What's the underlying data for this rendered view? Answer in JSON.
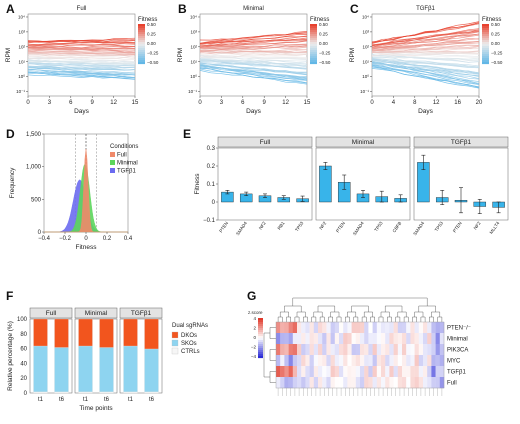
{
  "figure": {
    "panel_letters": [
      "A",
      "B",
      "C",
      "D",
      "E",
      "F",
      "G"
    ]
  },
  "chart_data": [
    {
      "panel": "A",
      "type": "line",
      "title": "Full",
      "xlabel": "Days",
      "ylabel": "RPM",
      "xlim": [
        0,
        15
      ],
      "ylim_log10": [
        -1.3,
        4.2
      ],
      "x_ticks": [
        "0",
        "3",
        "6",
        "9",
        "12",
        "15"
      ],
      "y_ticks": [
        "10⁻¹",
        "10⁰",
        "10¹",
        "10²",
        "10³",
        "10⁴"
      ],
      "legend_title": "Fitness",
      "legend_ticks": [
        "0.50",
        "0.25",
        "0.00",
        "−0.25",
        "−0.50"
      ],
      "fitness_range": [
        -0.5,
        0.5
      ],
      "band_log10_at_start": [
        0.2,
        2.4
      ],
      "band_log10_at_end": [
        -0.2,
        2.5
      ],
      "n_lines": 60
    },
    {
      "panel": "B",
      "type": "line",
      "title": "Minimal",
      "xlabel": "Days",
      "ylabel": "RPM",
      "xlim": [
        0,
        15
      ],
      "ylim_log10": [
        -1.3,
        4.2
      ],
      "x_ticks": [
        "0",
        "3",
        "6",
        "9",
        "12",
        "15"
      ],
      "y_ticks": [
        "10⁻¹",
        "10⁰",
        "10¹",
        "10²",
        "10³",
        "10⁴"
      ],
      "legend_title": "Fitness",
      "legend_ticks": [
        "0.50",
        "0.25",
        "0.00",
        "−0.25",
        "−0.50"
      ],
      "fitness_range": [
        -0.5,
        0.5
      ],
      "band_log10_at_start": [
        0.5,
        2.3
      ],
      "band_log10_at_end": [
        -0.5,
        3.0
      ],
      "n_lines": 60
    },
    {
      "panel": "C",
      "type": "line",
      "title": "TGFβ1",
      "xlabel": "Days",
      "ylabel": "RPM",
      "xlim": [
        0,
        20
      ],
      "ylim_log10": [
        -1.3,
        4.2
      ],
      "x_ticks": [
        "0",
        "4",
        "8",
        "12",
        "16",
        "20"
      ],
      "y_ticks": [
        "10⁻¹",
        "10⁰",
        "10¹",
        "10²",
        "10³",
        "10⁴"
      ],
      "legend_title": "Fitness",
      "legend_ticks": [
        "0.50",
        "0.25",
        "0.00",
        "−0.25",
        "−0.50"
      ],
      "fitness_range": [
        -0.5,
        0.5
      ],
      "band_log10_at_start": [
        0.7,
        2.3
      ],
      "band_log10_at_end": [
        -0.9,
        3.6
      ],
      "n_lines": 60
    },
    {
      "panel": "D",
      "type": "area",
      "xlabel": "Fitness",
      "ylabel": "Frequency",
      "xlim": [
        -0.4,
        0.4
      ],
      "ylim": [
        0,
        1500
      ],
      "x_ticks": [
        "−0.4",
        "−0.2",
        "0",
        "0.2",
        "0.4"
      ],
      "y_ticks": [
        "0",
        "500",
        "1,000",
        "1,500"
      ],
      "legend_title": "Conditions",
      "series": [
        {
          "name": "Full",
          "color": "#f08a6a",
          "mean": 0.0,
          "sd": 0.02,
          "peak": 1270
        },
        {
          "name": "Minimal",
          "color": "#5cd65c",
          "mean": -0.01,
          "sd": 0.045,
          "peak": 1040
        },
        {
          "name": "TGFβ1",
          "color": "#6b6bf0",
          "mean": -0.06,
          "sd": 0.06,
          "peak": 800
        }
      ]
    },
    {
      "panel": "E",
      "type": "bar",
      "ylabel": "Fitness",
      "ylim": [
        -0.1,
        0.3
      ],
      "y_ticks": [
        "−0.1",
        "0",
        "0.1",
        "0.2",
        "0.3"
      ],
      "facets": [
        {
          "name": "Full",
          "categories": [
            "PTEN",
            "SMAD4",
            "NF2",
            "RB1",
            "TP53"
          ],
          "values": [
            0.055,
            0.045,
            0.035,
            0.025,
            0.018
          ],
          "errors": [
            0.01,
            0.01,
            0.01,
            0.01,
            0.015
          ]
        },
        {
          "name": "Minimal",
          "categories": [
            "NF2",
            "PTEN",
            "SMAD4",
            "TP53",
            "CBFB"
          ],
          "values": [
            0.2,
            0.11,
            0.045,
            0.03,
            0.02
          ],
          "errors": [
            0.02,
            0.04,
            0.02,
            0.03,
            0.02
          ]
        },
        {
          "name": "TGFβ1",
          "categories": [
            "SMAD4",
            "TP53",
            "PTEN",
            "NF2",
            "MLLT4"
          ],
          "values": [
            0.22,
            0.025,
            0.01,
            -0.025,
            -0.03
          ],
          "errors": [
            0.04,
            0.04,
            0.07,
            0.04,
            0.03
          ]
        }
      ]
    },
    {
      "panel": "F",
      "type": "bar",
      "xlabel": "Time points",
      "ylabel": "Relative percentage (%)",
      "ylim": [
        0,
        100
      ],
      "y_ticks": [
        "0",
        "20",
        "40",
        "60",
        "80",
        "100"
      ],
      "legend_title": "Dual sgRNAs",
      "stack_order": [
        "CTRLs",
        "SKOs",
        "DKOs"
      ],
      "stack_colors": {
        "DKOs": "#f2551e",
        "SKOs": "#8ed4f0",
        "CTRLs": "#f6f6f6"
      },
      "legend_entries": [
        {
          "name": "DKOs",
          "color": "#f2551e"
        },
        {
          "name": "SKOs",
          "color": "#8ed4f0"
        },
        {
          "name": "CTRLs",
          "color": "#f6f6f6"
        }
      ],
      "facets": [
        {
          "name": "Full",
          "categories": [
            "t1",
            "t6"
          ],
          "CTRLs": [
            1.5,
            1.5
          ],
          "SKOs": [
            62,
            60
          ],
          "DKOs": [
            36.5,
            38.5
          ]
        },
        {
          "name": "Minimal",
          "categories": [
            "t1",
            "t6"
          ],
          "CTRLs": [
            1.5,
            1.5
          ],
          "SKOs": [
            62,
            60
          ],
          "DKOs": [
            36.5,
            38.5
          ]
        },
        {
          "name": "TGFβ1",
          "categories": [
            "t1",
            "t6"
          ],
          "CTRLs": [
            1.5,
            1.5
          ],
          "SKOs": [
            62,
            58
          ],
          "DKOs": [
            36.5,
            40.5
          ]
        }
      ]
    },
    {
      "panel": "G",
      "type": "heatmap",
      "legend_title": "z.score",
      "legend_ticks": [
        "4",
        "2",
        "0",
        "−2",
        "−4"
      ],
      "rows": [
        "PTEN⁻/⁻",
        "Minimal",
        "PIK3CA",
        "MYC",
        "TGFβ1",
        "Full"
      ],
      "n_cols": 40,
      "color_low": "#2b2bd6",
      "color_mid": "#ffffff",
      "color_high": "#e0392b"
    }
  ]
}
